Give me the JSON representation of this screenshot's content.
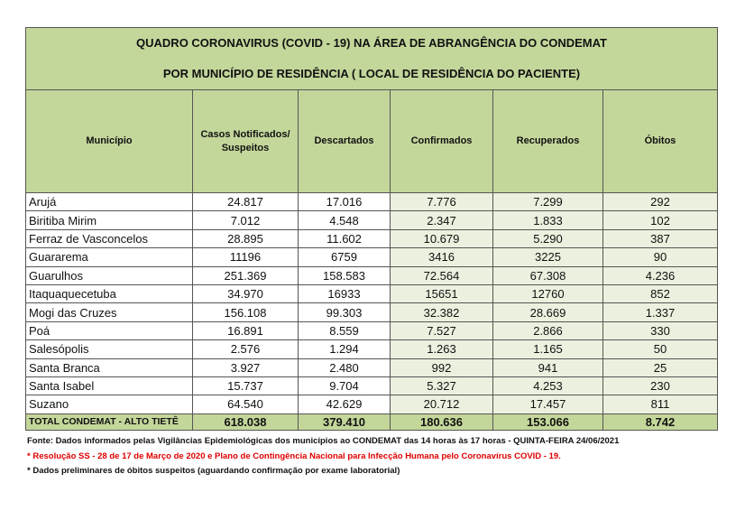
{
  "title": {
    "line1": "QUADRO CORONAVIRUS (COVID - 19) NA ÁREA DE ABRANGÊNCIA DO CONDEMAT",
    "line2": "POR MUNICÍPIO DE RESIDÊNCIA ( LOCAL DE RESIDÊNCIA DO PACIENTE)"
  },
  "table": {
    "headers": [
      "Município",
      "Casos Notificados/ Suspeitos",
      "Descartados",
      "Confirmados",
      "Recuperados",
      "Óbitos"
    ],
    "rows": [
      [
        "Arujá",
        "24.817",
        "17.016",
        "7.776",
        "7.299",
        "292"
      ],
      [
        "Biritiba Mirim",
        "7.012",
        "4.548",
        "2.347",
        "1.833",
        "102"
      ],
      [
        "Ferraz de Vasconcelos",
        "28.895",
        "11.602",
        "10.679",
        "5.290",
        "387"
      ],
      [
        "Guararema",
        "11196",
        "6759",
        "3416",
        "3225",
        "90"
      ],
      [
        "Guarulhos",
        "251.369",
        "158.583",
        "72.564",
        "67.308",
        "4.236"
      ],
      [
        "Itaquaquecetuba",
        "34.970",
        "16933",
        "15651",
        "12760",
        "852"
      ],
      [
        "Mogi das Cruzes",
        "156.108",
        "99.303",
        "32.382",
        "28.669",
        "1.337"
      ],
      [
        "Poá",
        "16.891",
        "8.559",
        "7.527",
        "2.866",
        "330"
      ],
      [
        "Salesópolis",
        "2.576",
        "1.294",
        "1.263",
        "1.165",
        "50"
      ],
      [
        "Santa Branca",
        "3.927",
        "2.480",
        "992",
        "941",
        "25"
      ],
      [
        "Santa Isabel",
        "15.737",
        "9.704",
        "5.327",
        "4.253",
        "230"
      ],
      [
        "Suzano",
        "64.540",
        "42.629",
        "20.712",
        "17.457",
        "811"
      ]
    ],
    "total": [
      "TOTAL CONDEMAT - ALTO TIETÊ",
      "618.038",
      "379.410",
      "180.636",
      "153.066",
      "8.742"
    ]
  },
  "footnotes": [
    "Fonte: Dados informados pelas Vigilâncias Epidemiológicas dos municípios ao CONDEMAT das 14 horas às 17 horas - QUINTA-FEIRA 24/06/2021",
    "* Resolução SS - 28 de 17 de Março de 2020 e Plano de Contingência Nacional para Infecção Humana pelo Coronavírus COVID - 19.",
    "* Dados preliminares de óbitos suspeitos (aguardando confirmação por exame laboratorial)"
  ]
}
